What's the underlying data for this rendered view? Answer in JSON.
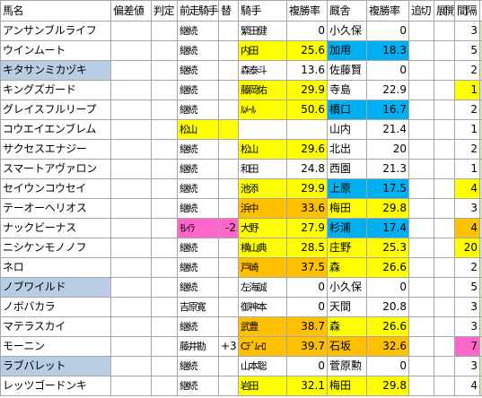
{
  "headers": [
    "馬名",
    "偏差値",
    "判定",
    "前走騎手",
    "替",
    "騎手",
    "複勝率",
    "厩舎",
    "複勝率",
    "追切",
    "展開",
    "間隔",
    "↑"
  ],
  "rows": [
    {
      "horse": "アンサンブルライフ",
      "prev_jockey": "継続",
      "change": "",
      "jockey": "繁田健",
      "j_rate": "0",
      "trainer": "小久保",
      "t_rate": "0",
      "interval": "3",
      "horse_bg": "",
      "prev_bg": "",
      "jockey_bg": "",
      "trainer_bg": "",
      "interval_bg": ""
    },
    {
      "horse": "ウインムート",
      "prev_jockey": "継続",
      "change": "",
      "jockey": "内田",
      "j_rate": "25.6",
      "trainer": "加用",
      "t_rate": "18.3",
      "interval": "5",
      "horse_bg": "",
      "prev_bg": "",
      "jockey_bg": "yellow",
      "trainer_bg": "cyan",
      "interval_bg": ""
    },
    {
      "horse": "キタサンミカヅキ",
      "prev_jockey": "継続",
      "change": "",
      "jockey": "森泰斗",
      "j_rate": "13.6",
      "trainer": "佐藤賢",
      "t_rate": "0",
      "interval": "2",
      "horse_bg": "blue",
      "prev_bg": "",
      "jockey_bg": "",
      "trainer_bg": "",
      "interval_bg": ""
    },
    {
      "horse": "キングズガード",
      "prev_jockey": "継続",
      "change": "",
      "jockey": "藤岡佑",
      "j_rate": "29.9",
      "trainer": "寺島",
      "t_rate": "22.9",
      "interval": "1",
      "horse_bg": "",
      "prev_bg": "",
      "jockey_bg": "yellow",
      "trainer_bg": "",
      "interval_bg": "yellow"
    },
    {
      "horse": "グレイスフルリープ",
      "prev_jockey": "継続",
      "change": "",
      "jockey": "ﾙﾒｰﾙ",
      "j_rate": "50.6",
      "trainer": "橋口",
      "t_rate": "16.7",
      "interval": "2",
      "horse_bg": "",
      "prev_bg": "",
      "jockey_bg": "yellow",
      "trainer_bg": "cyan",
      "interval_bg": ""
    },
    {
      "horse": "コウエイエンブレム",
      "prev_jockey": "松山",
      "change": "",
      "jockey": "",
      "j_rate": "",
      "trainer": "山内",
      "t_rate": "21.4",
      "interval": "1",
      "horse_bg": "",
      "prev_bg": "yellow",
      "jockey_bg": "",
      "trainer_bg": "",
      "interval_bg": ""
    },
    {
      "horse": "サクセスエナジー",
      "prev_jockey": "継続",
      "change": "",
      "jockey": "松山",
      "j_rate": "29.6",
      "trainer": "北出",
      "t_rate": "20",
      "interval": "2",
      "horse_bg": "",
      "prev_bg": "",
      "jockey_bg": "yellow",
      "trainer_bg": "",
      "interval_bg": ""
    },
    {
      "horse": "スマートアヴァロン",
      "prev_jockey": "継続",
      "change": "",
      "jockey": "和田",
      "j_rate": "24.8",
      "trainer": "西園",
      "t_rate": "21.3",
      "interval": "1",
      "horse_bg": "",
      "prev_bg": "",
      "jockey_bg": "",
      "trainer_bg": "",
      "interval_bg": ""
    },
    {
      "horse": "セイウンコウセイ",
      "prev_jockey": "継続",
      "change": "",
      "jockey": "池添",
      "j_rate": "29.9",
      "trainer": "上原",
      "t_rate": "17.5",
      "interval": "4",
      "horse_bg": "",
      "prev_bg": "",
      "jockey_bg": "yellow",
      "trainer_bg": "cyan",
      "interval_bg": "yellow"
    },
    {
      "horse": "テーオーヘリオス",
      "prev_jockey": "継続",
      "change": "",
      "jockey": "浜中",
      "j_rate": "33.6",
      "trainer": "梅田",
      "t_rate": "29.8",
      "interval": "3",
      "horse_bg": "",
      "prev_bg": "",
      "jockey_bg": "orange",
      "trainer_bg": "yellow",
      "interval_bg": ""
    },
    {
      "horse": "ナックビーナス",
      "prev_jockey": "ﾓﾚｲﾗ",
      "change": "-2",
      "jockey": "大野",
      "j_rate": "27.9",
      "trainer": "杉浦",
      "t_rate": "17.4",
      "interval": "4",
      "horse_bg": "",
      "prev_bg": "pink",
      "jockey_bg": "yellow",
      "trainer_bg": "cyan",
      "interval_bg": "orange"
    },
    {
      "horse": "ニシケンモノノフ",
      "prev_jockey": "継続",
      "change": "",
      "jockey": "横山典",
      "j_rate": "28.5",
      "trainer": "庄野",
      "t_rate": "25.3",
      "interval": "20",
      "horse_bg": "",
      "prev_bg": "",
      "jockey_bg": "yellow",
      "trainer_bg": "yellow",
      "interval_bg": "yellow"
    },
    {
      "horse": "ネロ",
      "prev_jockey": "継続",
      "change": "",
      "jockey": "戸崎",
      "j_rate": "37.5",
      "trainer": "森",
      "t_rate": "26.6",
      "interval": "2",
      "horse_bg": "",
      "prev_bg": "",
      "jockey_bg": "orange",
      "trainer_bg": "yellow",
      "interval_bg": ""
    },
    {
      "horse": "ノブワイルド",
      "prev_jockey": "継続",
      "change": "",
      "jockey": "左海誠",
      "j_rate": "0",
      "trainer": "小久保",
      "t_rate": "0",
      "interval": "5",
      "horse_bg": "blue",
      "prev_bg": "",
      "jockey_bg": "",
      "trainer_bg": "",
      "interval_bg": ""
    },
    {
      "horse": "ノボバカラ",
      "prev_jockey": "吉原寛",
      "change": "",
      "jockey": "御神本",
      "j_rate": "0",
      "trainer": "天間",
      "t_rate": "20.8",
      "interval": "3",
      "horse_bg": "",
      "prev_bg": "",
      "jockey_bg": "",
      "trainer_bg": "",
      "interval_bg": ""
    },
    {
      "horse": "マテラスカイ",
      "prev_jockey": "継続",
      "change": "",
      "jockey": "武豊",
      "j_rate": "38.7",
      "trainer": "森",
      "t_rate": "26.6",
      "interval": "3",
      "horse_bg": "",
      "prev_bg": "",
      "jockey_bg": "orange",
      "trainer_bg": "yellow",
      "interval_bg": ""
    },
    {
      "horse": "モーニン",
      "prev_jockey": "藤井勘",
      "change": "+3",
      "jockey": "Cﾃﾞﾑｰﾛ",
      "j_rate": "39.7",
      "trainer": "石坂",
      "t_rate": "32.6",
      "interval": "7",
      "horse_bg": "",
      "prev_bg": "",
      "jockey_bg": "orange",
      "trainer_bg": "orange",
      "interval_bg": "pink"
    },
    {
      "horse": "ラブバレット",
      "prev_jockey": "継続",
      "change": "",
      "jockey": "山本聡",
      "j_rate": "0",
      "trainer": "菅原勲",
      "t_rate": "0",
      "interval": "3",
      "horse_bg": "blue",
      "prev_bg": "",
      "jockey_bg": "",
      "trainer_bg": "",
      "interval_bg": ""
    },
    {
      "horse": "レッツゴードンキ",
      "prev_jockey": "継続",
      "change": "",
      "jockey": "岩田",
      "j_rate": "32.1",
      "trainer": "梅田",
      "t_rate": "29.8",
      "interval": "4",
      "horse_bg": "",
      "prev_bg": "",
      "jockey_bg": "yellow",
      "trainer_bg": "yellow",
      "interval_bg": ""
    }
  ]
}
